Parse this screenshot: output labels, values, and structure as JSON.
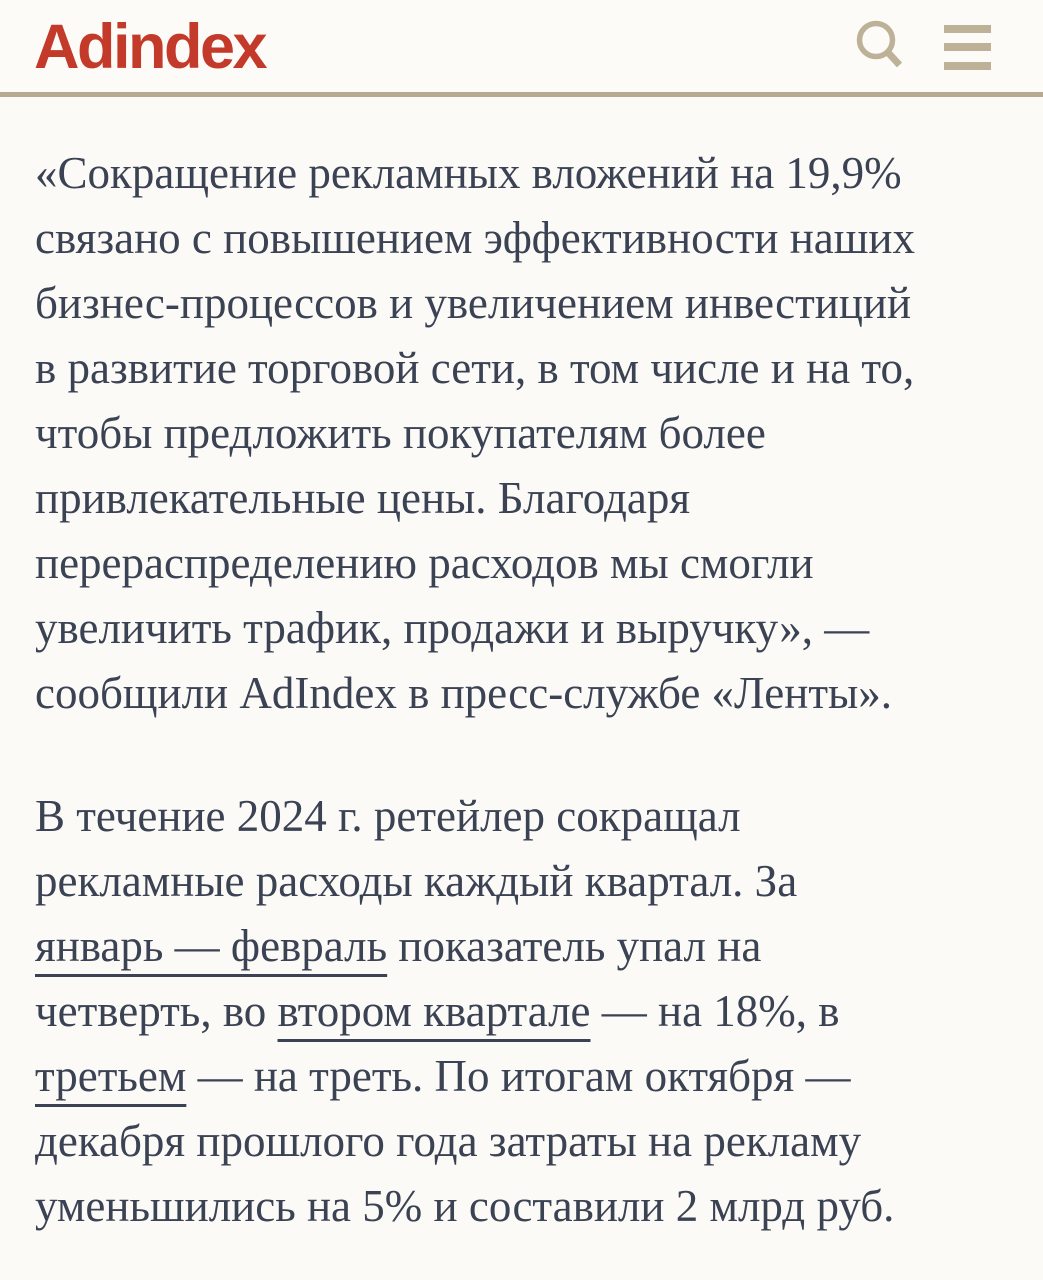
{
  "header": {
    "logo_text": "Adindex",
    "icons": [
      {
        "name": "search-icon"
      },
      {
        "name": "hamburger-menu-icon"
      }
    ]
  },
  "colors": {
    "logo_red": "#C43A2A",
    "accent_tan": "#BDB197",
    "divider_tan": "#B6AB92",
    "text": "#3A4253",
    "background": "#FBFAF6"
  },
  "article": {
    "paragraphs": [
      {
        "lines": [
          [
            {
              "t": "«Сокращение рекламных вложений на 19,9%"
            }
          ],
          [
            {
              "t": "связано с повышением эффективности наших"
            }
          ],
          [
            {
              "t": "бизнес-процессов и увеличением инвестиций"
            }
          ],
          [
            {
              "t": "в развитие торговой сети, в том числе и на то,"
            }
          ],
          [
            {
              "t": "чтобы предложить покупателям более"
            }
          ],
          [
            {
              "t": "привлекательные цены. Благодаря"
            }
          ],
          [
            {
              "t": "перераспределению расходов мы смогли"
            }
          ],
          [
            {
              "t": "увеличить трафик, продажи и выручку», —"
            }
          ],
          [
            {
              "t": "сообщили AdIndex в пресс-службе «Ленты»."
            }
          ]
        ]
      },
      {
        "lines": [
          [
            {
              "t": "В течение 2024 г. ретейлер сокращал"
            }
          ],
          [
            {
              "t": "рекламные расходы каждый квартал. За"
            }
          ],
          [
            {
              "t": "январь — февраль",
              "link": true
            },
            {
              "t": " показатель упал на"
            }
          ],
          [
            {
              "t": "четверть, во "
            },
            {
              "t": "втором квартале",
              "link": true
            },
            {
              "t": " — на 18%, в"
            }
          ],
          [
            {
              "t": "третьем",
              "link": true
            },
            {
              "t": " — на треть. По итогам октября —"
            }
          ],
          [
            {
              "t": "декабря прошлого года затраты на рекламу"
            }
          ],
          [
            {
              "t": "уменьшились на 5% и составили 2 млрд руб."
            }
          ]
        ]
      }
    ]
  }
}
